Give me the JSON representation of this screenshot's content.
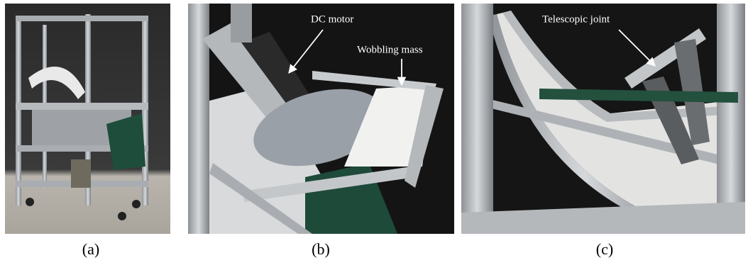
{
  "panels": [
    {
      "label": "(a)",
      "annotations": []
    },
    {
      "label": "(b)",
      "annotations": [
        "DC motor",
        "Wobbling mass"
      ]
    },
    {
      "label": "(c)",
      "annotations": [
        "Telescopic joint"
      ]
    }
  ]
}
